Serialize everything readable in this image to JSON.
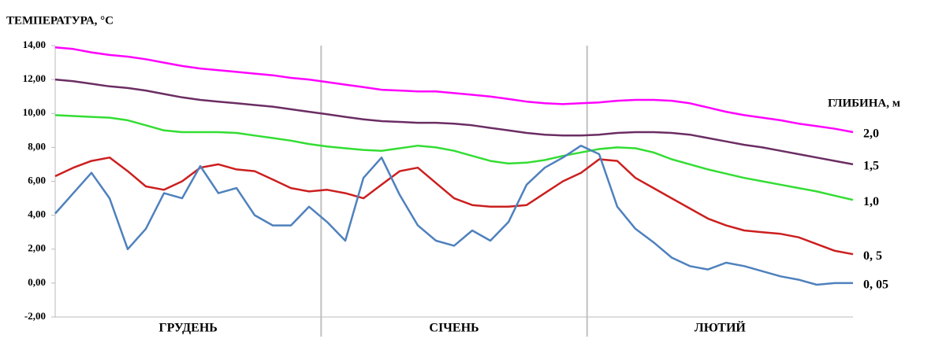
{
  "chart_data": {
    "type": "line",
    "title": "ТЕМПЕРАТУРА, °С",
    "legend_title": "ГЛИБИНА, м",
    "months": [
      "ГРУДЕНЬ",
      "СІЧЕНЬ",
      "ЛЮТИЙ"
    ],
    "ylim": [
      -2,
      14
    ],
    "yticks": [
      {
        "value": -2,
        "label": "-2,00"
      },
      {
        "value": 0,
        "label": "0,00"
      },
      {
        "value": 2,
        "label": "2,00"
      },
      {
        "value": 4,
        "label": "4,00"
      },
      {
        "value": 6,
        "label": "6,00"
      },
      {
        "value": 8,
        "label": "8,00"
      },
      {
        "value": 10,
        "label": "10,00"
      },
      {
        "value": 12,
        "label": "12,00"
      },
      {
        "value": 14,
        "label": "14,00"
      }
    ],
    "grid": false,
    "series": [
      {
        "name": "2,0",
        "color": "#ff00ff",
        "values": [
          13.9,
          13.8,
          13.6,
          13.45,
          13.35,
          13.2,
          13.0,
          12.8,
          12.65,
          12.55,
          12.45,
          12.35,
          12.25,
          12.1,
          12.0,
          11.85,
          11.7,
          11.55,
          11.4,
          11.35,
          11.3,
          11.3,
          11.2,
          11.1,
          11.0,
          10.85,
          10.7,
          10.6,
          10.55,
          10.6,
          10.65,
          10.75,
          10.8,
          10.8,
          10.75,
          10.6,
          10.35,
          10.1,
          9.9,
          9.75,
          9.6,
          9.4,
          9.25,
          9.1,
          8.9
        ]
      },
      {
        "name": "1,5",
        "color": "#6b2d63",
        "values": [
          12.0,
          11.9,
          11.75,
          11.6,
          11.5,
          11.35,
          11.15,
          10.95,
          10.8,
          10.7,
          10.6,
          10.5,
          10.4,
          10.25,
          10.1,
          9.95,
          9.8,
          9.65,
          9.55,
          9.5,
          9.45,
          9.45,
          9.4,
          9.3,
          9.15,
          9.0,
          8.85,
          8.75,
          8.7,
          8.7,
          8.75,
          8.85,
          8.9,
          8.9,
          8.85,
          8.75,
          8.55,
          8.35,
          8.15,
          8.0,
          7.8,
          7.6,
          7.4,
          7.2,
          7.0
        ]
      },
      {
        "name": "1,0",
        "color": "#33dd33",
        "values": [
          9.9,
          9.85,
          9.8,
          9.75,
          9.6,
          9.3,
          9.0,
          8.9,
          8.9,
          8.9,
          8.85,
          8.7,
          8.55,
          8.4,
          8.2,
          8.05,
          7.95,
          7.85,
          7.8,
          7.95,
          8.1,
          8.0,
          7.8,
          7.5,
          7.2,
          7.05,
          7.1,
          7.25,
          7.5,
          7.7,
          7.9,
          8.0,
          7.95,
          7.7,
          7.3,
          7.0,
          6.7,
          6.45,
          6.2,
          6.0,
          5.8,
          5.6,
          5.4,
          5.15,
          4.9
        ]
      },
      {
        "name": "0, 5",
        "color": "#cc1f1f",
        "values": [
          6.3,
          6.8,
          7.2,
          7.4,
          6.6,
          5.7,
          5.5,
          6.0,
          6.8,
          7.0,
          6.7,
          6.6,
          6.1,
          5.6,
          5.4,
          5.5,
          5.3,
          5.0,
          5.8,
          6.6,
          6.8,
          5.9,
          5.0,
          4.6,
          4.5,
          4.5,
          4.6,
          5.3,
          6.0,
          6.5,
          7.3,
          7.2,
          6.2,
          5.6,
          5.0,
          4.4,
          3.8,
          3.4,
          3.1,
          3.0,
          2.9,
          2.7,
          2.3,
          1.9,
          1.7
        ]
      },
      {
        "name": "0, 05",
        "color": "#4f81bd",
        "values": [
          4.1,
          5.3,
          6.5,
          5.0,
          2.0,
          3.2,
          5.3,
          5.0,
          6.9,
          5.3,
          5.6,
          4.0,
          3.4,
          3.4,
          4.5,
          3.6,
          2.5,
          6.2,
          7.4,
          5.2,
          3.4,
          2.5,
          2.2,
          3.1,
          2.5,
          3.6,
          5.8,
          6.8,
          7.4,
          8.1,
          7.6,
          4.5,
          3.2,
          2.4,
          1.5,
          1.0,
          0.8,
          1.2,
          1.0,
          0.7,
          0.4,
          0.2,
          -0.1,
          0.0,
          0.0
        ]
      }
    ]
  }
}
